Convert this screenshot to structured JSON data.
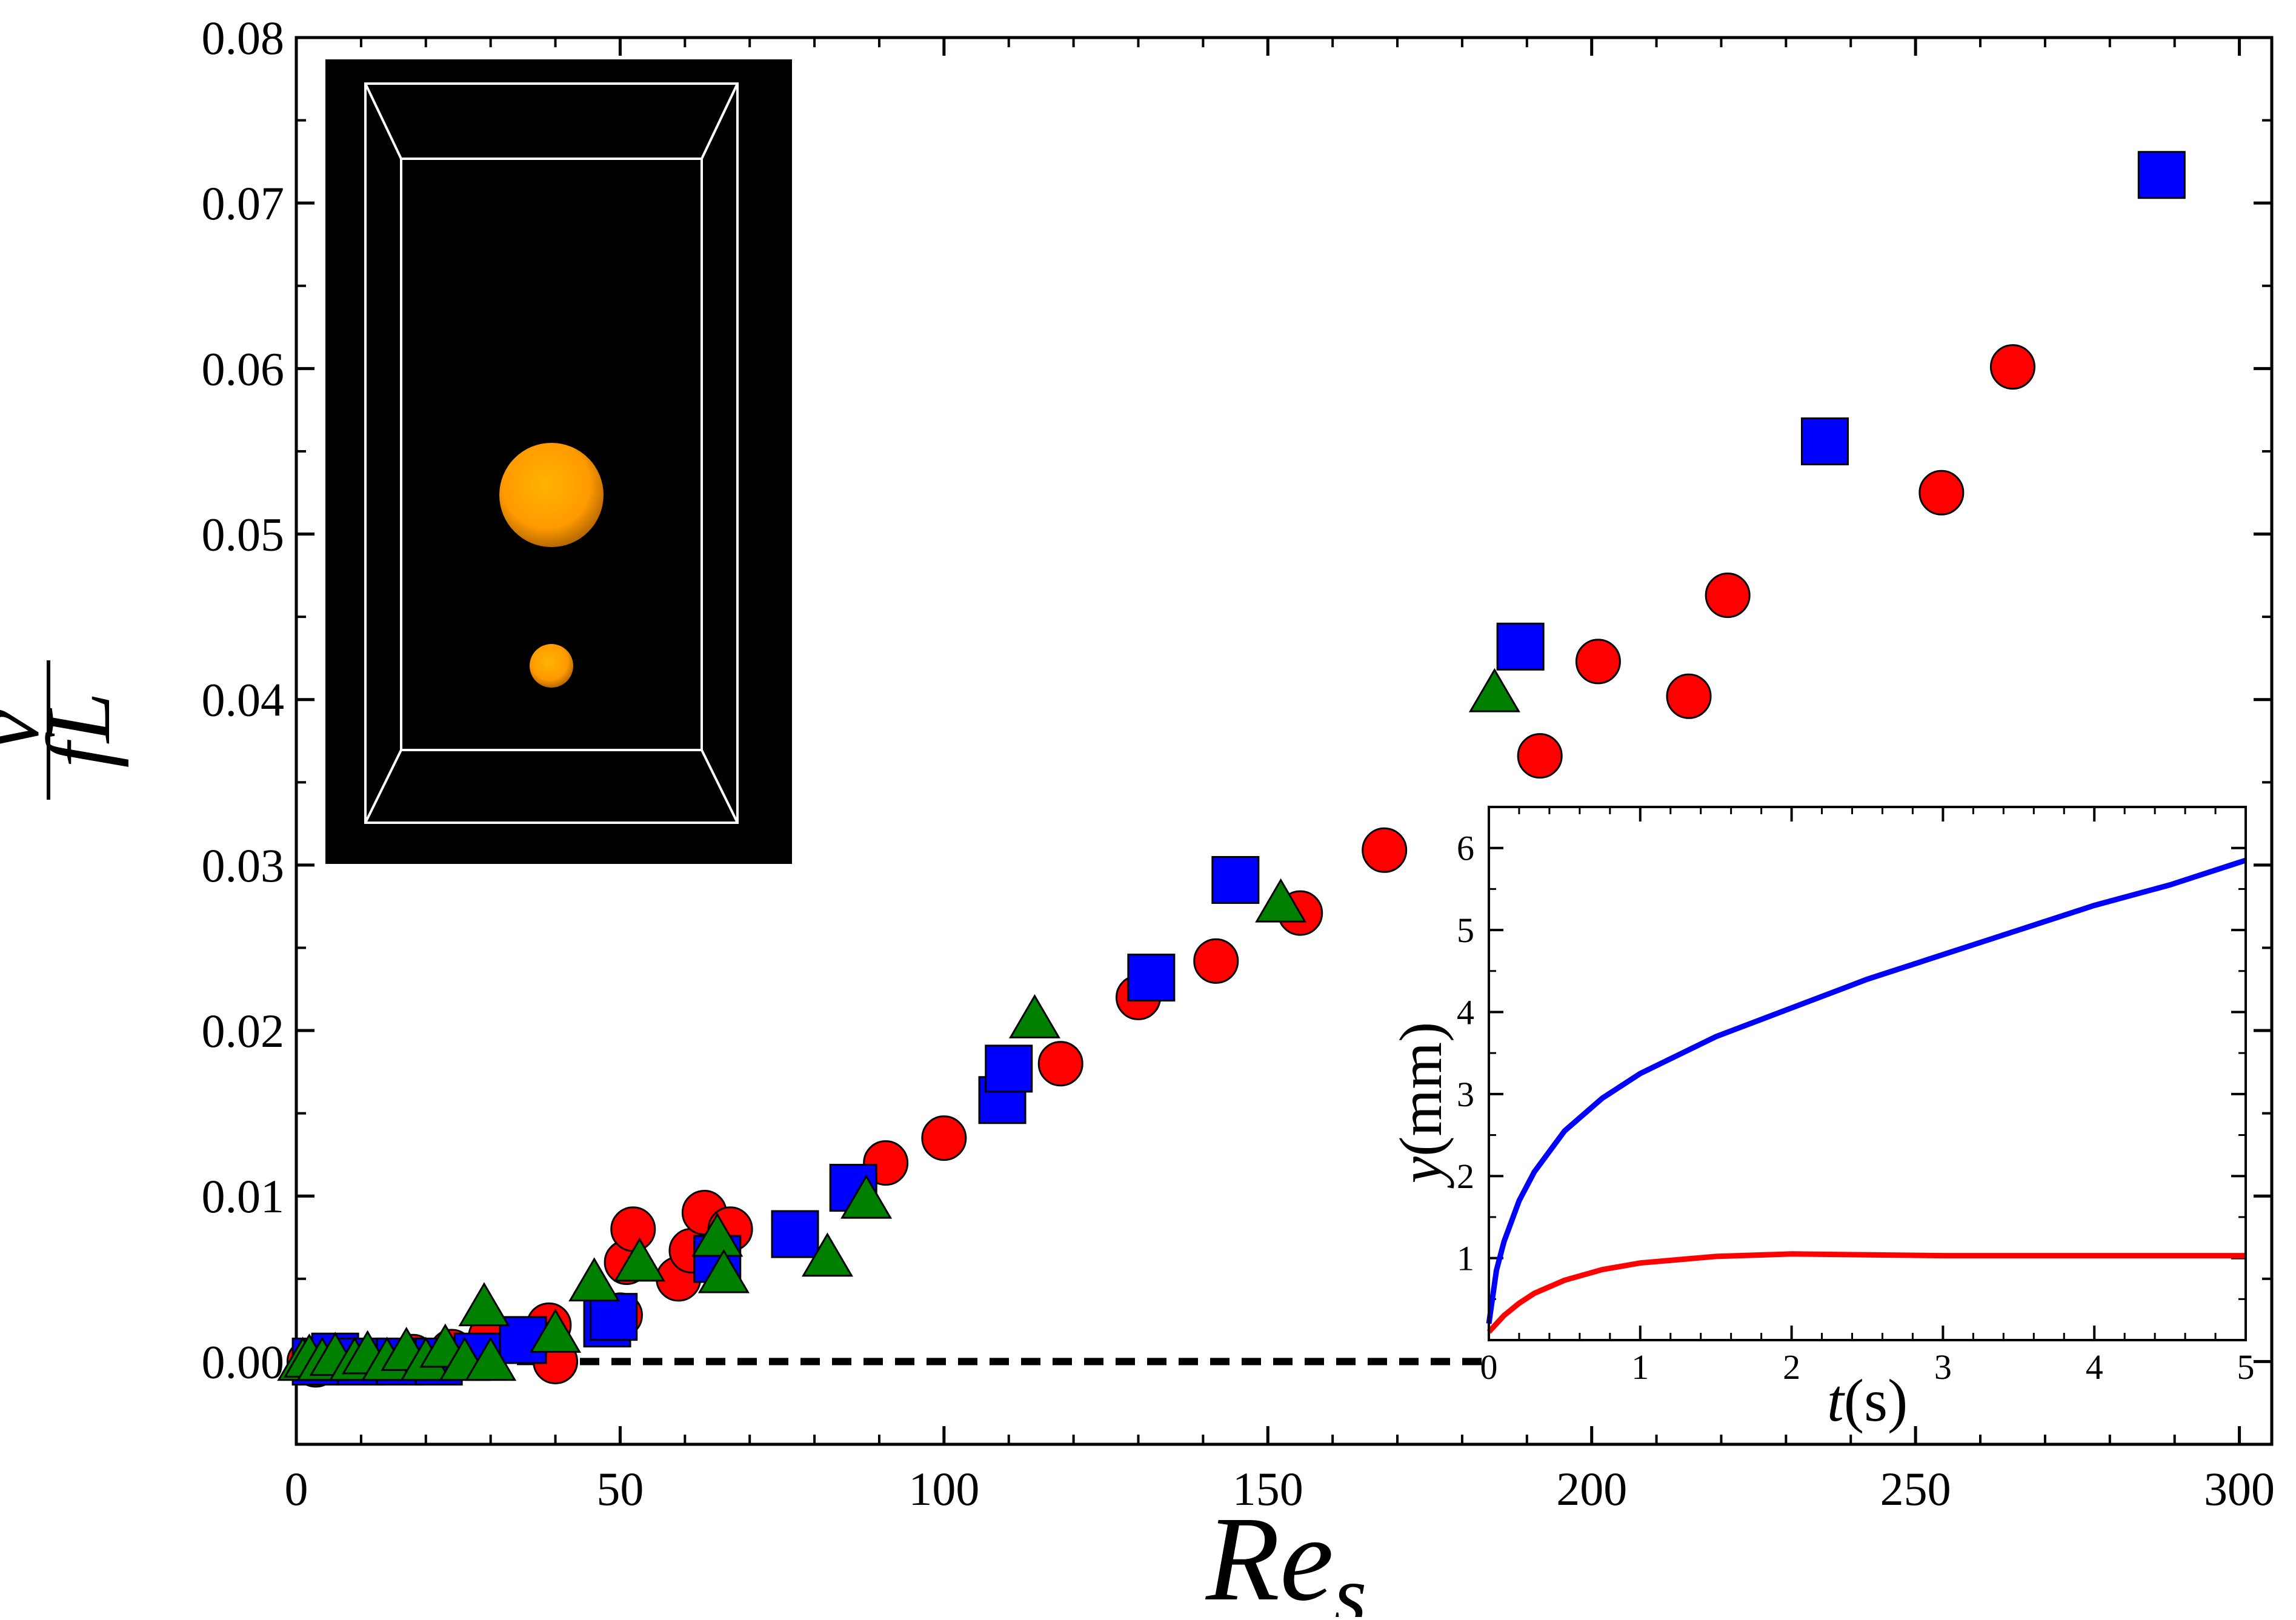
{
  "chart_data": {
    "type": "scatter",
    "title": "",
    "xlabel": "Re_s",
    "ylabel": "v / fL",
    "x_range": [
      0,
      305
    ],
    "y_range": [
      -0.005,
      0.08
    ],
    "x_ticks": [
      0,
      50,
      100,
      150,
      200,
      250,
      300
    ],
    "y_ticks": [
      0.0,
      0.01,
      0.02,
      0.03,
      0.04,
      0.05,
      0.06,
      0.07,
      0.08
    ],
    "x_tick_labels": [
      "0",
      "50",
      "100",
      "150",
      "200",
      "250",
      "300"
    ],
    "y_tick_labels": [
      "0.00",
      "0.01",
      "0.02",
      "0.03",
      "0.04",
      "0.05",
      "0.06",
      "0.07",
      "0.08"
    ],
    "grid": false,
    "legend": "none",
    "reference_line": {
      "style": "dashed",
      "color": "#000000",
      "y": 0.0,
      "x_from": 0,
      "x_to": 183
    },
    "series": [
      {
        "name": "circle",
        "marker": "circle",
        "color": "#ff0000",
        "points": [
          [
            2,
            0.0
          ],
          [
            3,
            -0.0002
          ],
          [
            5,
            0.0
          ],
          [
            8,
            0.0002
          ],
          [
            12,
            0.0
          ],
          [
            18,
            0.0003
          ],
          [
            22,
            0.0
          ],
          [
            24,
            0.0006
          ],
          [
            30,
            0.0015
          ],
          [
            39,
            0.0022
          ],
          [
            40,
            0.0
          ],
          [
            50,
            0.0028
          ],
          [
            51,
            0.006
          ],
          [
            52,
            0.008
          ],
          [
            59,
            0.005
          ],
          [
            61,
            0.0067
          ],
          [
            63,
            0.009
          ],
          [
            67,
            0.008
          ],
          [
            91,
            0.012
          ],
          [
            100,
            0.0135
          ],
          [
            118,
            0.018
          ],
          [
            130,
            0.022
          ],
          [
            142,
            0.0242
          ],
          [
            155,
            0.0271
          ],
          [
            168,
            0.0309
          ],
          [
            192,
            0.0366
          ],
          [
            201,
            0.0423
          ],
          [
            215,
            0.0402
          ],
          [
            221,
            0.0463
          ],
          [
            265,
            0.0601
          ],
          [
            254,
            0.0525
          ]
        ]
      },
      {
        "name": "square",
        "marker": "square",
        "color": "#0000ff",
        "points": [
          [
            3,
            0.0
          ],
          [
            6,
            0.0003
          ],
          [
            10,
            0.0
          ],
          [
            16,
            0.0
          ],
          [
            22,
            0.0
          ],
          [
            28,
            0.0003
          ],
          [
            35,
            0.0013
          ],
          [
            48,
            0.0023
          ],
          [
            49,
            0.0027
          ],
          [
            65,
            0.0062
          ],
          [
            77,
            0.0077
          ],
          [
            86,
            0.0105
          ],
          [
            109,
            0.0158
          ],
          [
            110,
            0.0177
          ],
          [
            132,
            0.0232
          ],
          [
            145,
            0.0291
          ],
          [
            189,
            0.0432
          ],
          [
            236,
            0.0556
          ],
          [
            288,
            0.0717
          ]
        ]
      },
      {
        "name": "triangle",
        "marker": "triangle",
        "color": "#008000",
        "points": [
          [
            1,
            0.0
          ],
          [
            2,
            0.0002
          ],
          [
            4,
            0.0
          ],
          [
            6,
            0.0003
          ],
          [
            9,
            0.0
          ],
          [
            11,
            0.0004
          ],
          [
            14,
            0.0
          ],
          [
            17,
            0.0006
          ],
          [
            20,
            0.0
          ],
          [
            23,
            0.0008
          ],
          [
            26,
            0.0
          ],
          [
            29,
            0.0033
          ],
          [
            30,
            0.0
          ],
          [
            40,
            0.0017
          ],
          [
            46,
            0.0048
          ],
          [
            53,
            0.006
          ],
          [
            65,
            0.0075
          ],
          [
            66,
            0.0053
          ],
          [
            82,
            0.0063
          ],
          [
            88,
            0.0098
          ],
          [
            114,
            0.0207
          ],
          [
            152,
            0.0277
          ],
          [
            185,
            0.0404
          ]
        ]
      }
    ],
    "insets": [
      {
        "type": "line",
        "xlabel_var": "t",
        "xlabel_unit": "(s)",
        "ylabel_var": "y",
        "ylabel_unit": "(mm)",
        "x_range": [
          0,
          5
        ],
        "y_range": [
          0,
          6.5
        ],
        "x_ticks": [
          0,
          1,
          2,
          3,
          4,
          5
        ],
        "y_ticks": [
          1,
          2,
          3,
          4,
          5,
          6
        ],
        "x_tick_labels": [
          "0",
          "1",
          "2",
          "3",
          "4",
          "5"
        ],
        "y_tick_labels": [
          "1",
          "2",
          "3",
          "4",
          "5",
          "6"
        ],
        "series": [
          {
            "name": "blue",
            "color": "#0000ff",
            "x": [
              0,
              0.05,
              0.1,
              0.2,
              0.3,
              0.5,
              0.75,
              1.0,
              1.5,
              2.0,
              2.5,
              3.0,
              3.5,
              4.0,
              4.5,
              5.0
            ],
            "y": [
              0.2,
              0.85,
              1.2,
              1.7,
              2.05,
              2.55,
              2.95,
              3.25,
              3.7,
              4.05,
              4.4,
              4.7,
              5.0,
              5.3,
              5.55,
              5.85
            ]
          },
          {
            "name": "red",
            "color": "#ff0000",
            "x": [
              0,
              0.05,
              0.1,
              0.2,
              0.3,
              0.5,
              0.75,
              1.0,
              1.5,
              2.0,
              2.5,
              3.0,
              3.5,
              4.0,
              4.5,
              5.0
            ],
            "y": [
              0.1,
              0.2,
              0.3,
              0.45,
              0.57,
              0.73,
              0.86,
              0.94,
              1.02,
              1.05,
              1.04,
              1.03,
              1.03,
              1.03,
              1.03,
              1.03
            ]
          }
        ]
      }
    ],
    "inset_image_description": "3D box with two orange spheres"
  },
  "labels": {
    "x_axis_main": "Re",
    "x_axis_sub": "s",
    "y_axis_numerator": "v",
    "y_axis_denominator": "fL"
  },
  "colors": {
    "sphere": "#ffa500",
    "box_background": "#000000",
    "box_edges": "#ffffff"
  }
}
